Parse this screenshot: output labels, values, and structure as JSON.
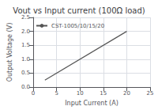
{
  "chart_data": {
    "type": "line",
    "title": "Vout vs Input current (100Ω load)",
    "xlabel": "Input Current (A)",
    "ylabel": "Output Voltage (V)",
    "x": [
      2.5,
      20
    ],
    "series": [
      {
        "name": "CST-1005/10/15/20",
        "color": "#555555",
        "values": [
          0.25,
          2.0
        ]
      }
    ],
    "xlim": [
      0,
      25
    ],
    "ylim": [
      0,
      2.5
    ],
    "xticks": [
      0,
      5,
      10,
      15,
      20,
      25
    ],
    "yticks": [
      {
        "value": 0,
        "label": "0.0"
      },
      0.5,
      {
        "value": 1.0,
        "label": "1.0"
      },
      1.5,
      {
        "value": 2.0,
        "label": "2.0"
      },
      2.5
    ],
    "grid": true,
    "legend": "upper left"
  }
}
